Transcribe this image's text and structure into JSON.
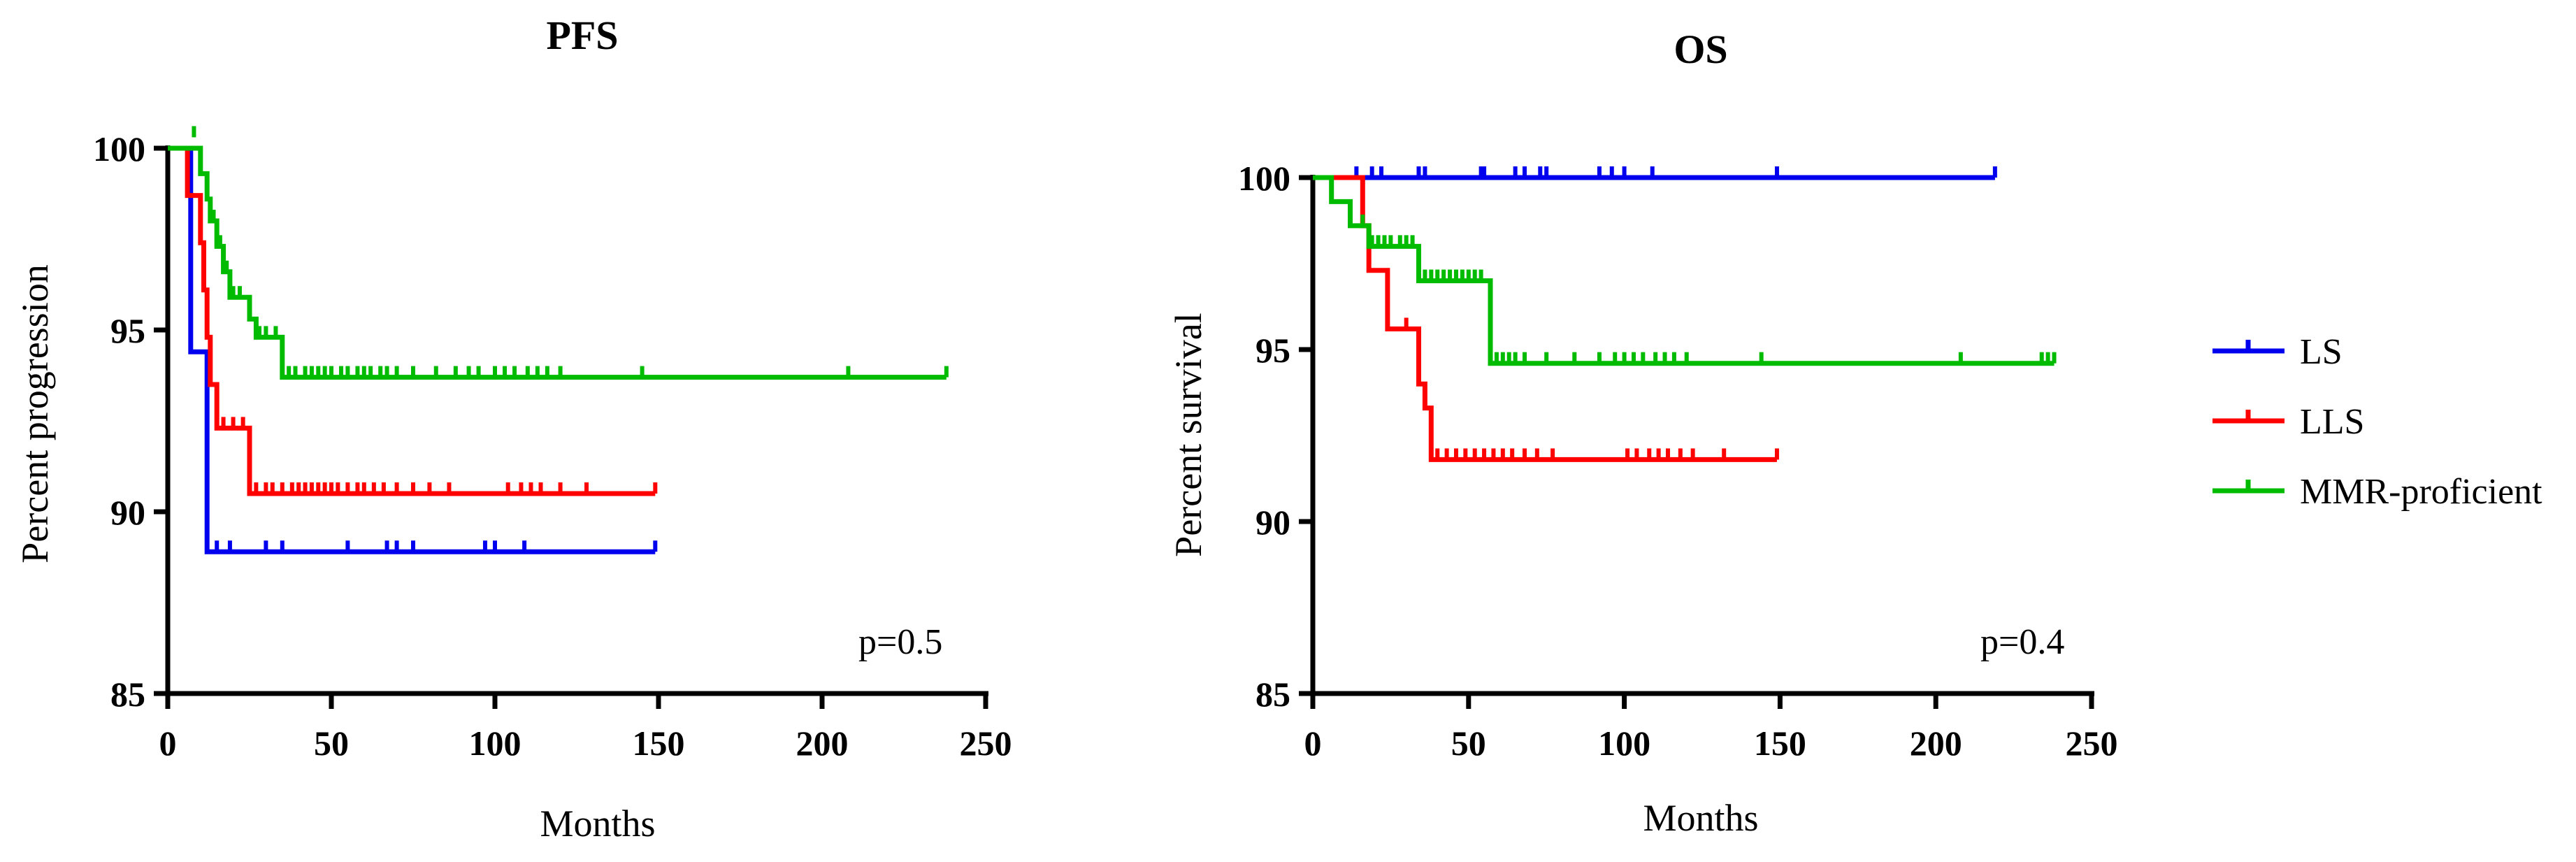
{
  "chart_data": [
    {
      "type": "line",
      "subtype": "kaplan-meier",
      "title": "PFS",
      "xlabel": "Months",
      "ylabel": "Percent progression",
      "xlim": [
        0,
        250
      ],
      "ylim": [
        85,
        100
      ],
      "xticks": [
        0,
        50,
        100,
        150,
        200,
        250
      ],
      "yticks": [
        85,
        90,
        95,
        100
      ],
      "annotation": "p=0.5",
      "series": [
        {
          "name": "LS",
          "color": "#0000ee",
          "steps": [
            [
              0,
              100
            ],
            [
              7,
              100
            ],
            [
              7,
              94.4
            ],
            [
              12,
              94.4
            ],
            [
              12,
              88.9
            ],
            [
              149,
              88.9
            ]
          ],
          "censors": [
            [
              15,
              88.9
            ],
            [
              19,
              88.9
            ],
            [
              30,
              88.9
            ],
            [
              35,
              88.9
            ],
            [
              55,
              88.9
            ],
            [
              67,
              88.9
            ],
            [
              70,
              88.9
            ],
            [
              75,
              88.9
            ],
            [
              97,
              88.9
            ],
            [
              100,
              88.9
            ],
            [
              109,
              88.9
            ],
            [
              149,
              88.9
            ]
          ]
        },
        {
          "name": "LLS",
          "color": "#ff0000",
          "steps": [
            [
              0,
              100
            ],
            [
              6,
              100
            ],
            [
              6,
              98.7
            ],
            [
              10,
              98.7
            ],
            [
              10,
              97.4
            ],
            [
              11,
              97.4
            ],
            [
              11,
              96.1
            ],
            [
              12,
              96.1
            ],
            [
              12,
              94.8
            ],
            [
              13,
              94.8
            ],
            [
              13,
              93.5
            ],
            [
              15,
              93.5
            ],
            [
              15,
              92.3
            ],
            [
              25,
              92.3
            ],
            [
              25,
              90.5
            ],
            [
              149,
              90.5
            ]
          ],
          "censors": [
            [
              17,
              92.3
            ],
            [
              20,
              92.3
            ],
            [
              23,
              92.3
            ],
            [
              27,
              90.5
            ],
            [
              30,
              90.5
            ],
            [
              32,
              90.5
            ],
            [
              35,
              90.5
            ],
            [
              38,
              90.5
            ],
            [
              40,
              90.5
            ],
            [
              42,
              90.5
            ],
            [
              44,
              90.5
            ],
            [
              46,
              90.5
            ],
            [
              48,
              90.5
            ],
            [
              50,
              90.5
            ],
            [
              52,
              90.5
            ],
            [
              55,
              90.5
            ],
            [
              58,
              90.5
            ],
            [
              60,
              90.5
            ],
            [
              63,
              90.5
            ],
            [
              66,
              90.5
            ],
            [
              70,
              90.5
            ],
            [
              75,
              90.5
            ],
            [
              80,
              90.5
            ],
            [
              86,
              90.5
            ],
            [
              104,
              90.5
            ],
            [
              108,
              90.5
            ],
            [
              111,
              90.5
            ],
            [
              114,
              90.5
            ],
            [
              120,
              90.5
            ],
            [
              128,
              90.5
            ],
            [
              149,
              90.5
            ]
          ]
        },
        {
          "name": "MMR-proficient",
          "color": "#00bb00",
          "steps": [
            [
              0,
              100
            ],
            [
              10,
              100
            ],
            [
              10,
              99.3
            ],
            [
              12,
              99.3
            ],
            [
              12,
              98.6
            ],
            [
              13,
              98.6
            ],
            [
              13,
              98.0
            ],
            [
              15,
              98.0
            ],
            [
              15,
              97.3
            ],
            [
              17,
              97.3
            ],
            [
              17,
              96.6
            ],
            [
              19,
              96.6
            ],
            [
              19,
              95.9
            ],
            [
              25,
              95.9
            ],
            [
              25,
              95.3
            ],
            [
              27,
              95.3
            ],
            [
              27,
              94.8
            ],
            [
              35,
              94.8
            ],
            [
              35,
              93.7
            ],
            [
              238,
              93.7
            ]
          ],
          "censors": [
            [
              8,
              100.3
            ],
            [
              14,
              98.0
            ],
            [
              16,
              97.3
            ],
            [
              18,
              96.6
            ],
            [
              20,
              95.9
            ],
            [
              22,
              95.9
            ],
            [
              28,
              94.8
            ],
            [
              30,
              94.8
            ],
            [
              33,
              94.8
            ],
            [
              37,
              93.7
            ],
            [
              39,
              93.7
            ],
            [
              42,
              93.7
            ],
            [
              44,
              93.7
            ],
            [
              46,
              93.7
            ],
            [
              48,
              93.7
            ],
            [
              50,
              93.7
            ],
            [
              53,
              93.7
            ],
            [
              55,
              93.7
            ],
            [
              58,
              93.7
            ],
            [
              60,
              93.7
            ],
            [
              62,
              93.7
            ],
            [
              65,
              93.7
            ],
            [
              67,
              93.7
            ],
            [
              70,
              93.7
            ],
            [
              75,
              93.7
            ],
            [
              82,
              93.7
            ],
            [
              88,
              93.7
            ],
            [
              92,
              93.7
            ],
            [
              95,
              93.7
            ],
            [
              100,
              93.7
            ],
            [
              103,
              93.7
            ],
            [
              106,
              93.7
            ],
            [
              110,
              93.7
            ],
            [
              113,
              93.7
            ],
            [
              116,
              93.7
            ],
            [
              120,
              93.7
            ],
            [
              145,
              93.7
            ],
            [
              208,
              93.7
            ],
            [
              238,
              93.7
            ]
          ]
        }
      ]
    },
    {
      "type": "line",
      "subtype": "kaplan-meier",
      "title": "OS",
      "xlabel": "Months",
      "ylabel": "Percent survival",
      "xlim": [
        0,
        250
      ],
      "ylim": [
        85,
        100
      ],
      "xticks": [
        0,
        50,
        100,
        150,
        200,
        250
      ],
      "yticks": [
        85,
        90,
        95,
        100
      ],
      "annotation": "p=0.4",
      "series": [
        {
          "name": "LS",
          "color": "#0000ee",
          "steps": [
            [
              0,
              100
            ],
            [
              219,
              100
            ]
          ],
          "censors": [
            [
              14,
              100
            ],
            [
              19,
              100
            ],
            [
              22,
              100
            ],
            [
              34,
              100
            ],
            [
              36,
              100
            ],
            [
              54,
              100
            ],
            [
              55,
              100
            ],
            [
              65,
              100
            ],
            [
              68,
              100
            ],
            [
              73,
              100
            ],
            [
              75,
              100
            ],
            [
              92,
              100
            ],
            [
              96,
              100
            ],
            [
              100,
              100
            ],
            [
              109,
              100
            ],
            [
              149,
              100
            ],
            [
              219,
              100
            ]
          ]
        },
        {
          "name": "LLS",
          "color": "#ff0000",
          "steps": [
            [
              0,
              100
            ],
            [
              16,
              100
            ],
            [
              16,
              98.6
            ],
            [
              18,
              98.6
            ],
            [
              18,
              97.3
            ],
            [
              24,
              97.3
            ],
            [
              24,
              95.6
            ],
            [
              34,
              95.6
            ],
            [
              34,
              94.0
            ],
            [
              36,
              94.0
            ],
            [
              36,
              93.3
            ],
            [
              38,
              93.3
            ],
            [
              38,
              91.8
            ],
            [
              149,
              91.8
            ]
          ],
          "censors": [
            [
              30,
              95.6
            ],
            [
              40,
              91.8
            ],
            [
              43,
              91.8
            ],
            [
              46,
              91.8
            ],
            [
              49,
              91.8
            ],
            [
              52,
              91.8
            ],
            [
              55,
              91.8
            ],
            [
              58,
              91.8
            ],
            [
              61,
              91.8
            ],
            [
              64,
              91.8
            ],
            [
              68,
              91.8
            ],
            [
              72,
              91.8
            ],
            [
              77,
              91.8
            ],
            [
              101,
              91.8
            ],
            [
              104,
              91.8
            ],
            [
              108,
              91.8
            ],
            [
              111,
              91.8
            ],
            [
              114,
              91.8
            ],
            [
              118,
              91.8
            ],
            [
              122,
              91.8
            ],
            [
              132,
              91.8
            ],
            [
              149,
              91.8
            ]
          ]
        },
        {
          "name": "MMR-proficient",
          "color": "#00bb00",
          "steps": [
            [
              0,
              100
            ],
            [
              6,
              100
            ],
            [
              6,
              99.3
            ],
            [
              12,
              99.3
            ],
            [
              12,
              98.6
            ],
            [
              18,
              98.6
            ],
            [
              18,
              98.0
            ],
            [
              34,
              98.0
            ],
            [
              34,
              97.0
            ],
            [
              57,
              97.0
            ],
            [
              57,
              94.6
            ],
            [
              238,
              94.6
            ]
          ],
          "censors": [
            [
              16,
              98.6
            ],
            [
              19,
              98.0
            ],
            [
              21,
              98.0
            ],
            [
              23,
              98.0
            ],
            [
              25,
              98.0
            ],
            [
              28,
              98.0
            ],
            [
              30,
              98.0
            ],
            [
              32,
              98.0
            ],
            [
              36,
              97.0
            ],
            [
              38,
              97.0
            ],
            [
              40,
              97.0
            ],
            [
              42,
              97.0
            ],
            [
              44,
              97.0
            ],
            [
              46,
              97.0
            ],
            [
              48,
              97.0
            ],
            [
              50,
              97.0
            ],
            [
              52,
              97.0
            ],
            [
              54,
              97.0
            ],
            [
              59,
              94.6
            ],
            [
              61,
              94.6
            ],
            [
              63,
              94.6
            ],
            [
              65,
              94.6
            ],
            [
              68,
              94.6
            ],
            [
              75,
              94.6
            ],
            [
              84,
              94.6
            ],
            [
              92,
              94.6
            ],
            [
              97,
              94.6
            ],
            [
              100,
              94.6
            ],
            [
              103,
              94.6
            ],
            [
              106,
              94.6
            ],
            [
              110,
              94.6
            ],
            [
              113,
              94.6
            ],
            [
              116,
              94.6
            ],
            [
              120,
              94.6
            ],
            [
              144,
              94.6
            ],
            [
              208,
              94.6
            ],
            [
              234,
              94.6
            ],
            [
              236,
              94.6
            ],
            [
              238,
              94.6
            ]
          ]
        }
      ]
    }
  ],
  "legend": {
    "position": "right",
    "entries": [
      {
        "label": "LS",
        "color": "#0000ee"
      },
      {
        "label": "LLS",
        "color": "#ff0000"
      },
      {
        "label": "MMR-proficient",
        "color": "#00bb00"
      }
    ]
  }
}
